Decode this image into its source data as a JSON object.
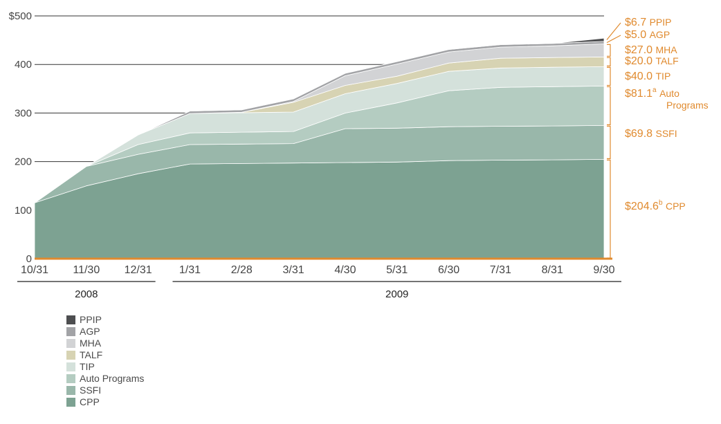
{
  "chart_data": {
    "type": "area",
    "stacked": true,
    "x": [
      "10/31",
      "11/30",
      "12/31",
      "1/31",
      "2/28",
      "3/31",
      "4/30",
      "5/31",
      "6/30",
      "7/31",
      "8/31",
      "9/30"
    ],
    "year_groups": [
      {
        "label": "2008",
        "from": "10/31",
        "to": "12/31"
      },
      {
        "label": "2009",
        "from": "1/31",
        "to": "9/30"
      }
    ],
    "ylim": [
      0,
      500
    ],
    "y_ticks": [
      {
        "value": 0,
        "label": "0"
      },
      {
        "value": 100,
        "label": "100"
      },
      {
        "value": 200,
        "label": "200"
      },
      {
        "value": 300,
        "label": "300"
      },
      {
        "value": 400,
        "label": "400"
      },
      {
        "value": 500,
        "label": "$500"
      }
    ],
    "series": [
      {
        "name": "CPP",
        "color": "#7da292",
        "values": [
          115,
          150,
          175,
          195,
          196,
          197,
          198,
          199,
          202,
          203,
          203.5,
          204.6
        ]
      },
      {
        "name": "SSFI",
        "color": "#99b7aa",
        "values": [
          0,
          40,
          40,
          40,
          40,
          40,
          69.8,
          69.8,
          69.8,
          69.8,
          69.8,
          69.8
        ]
      },
      {
        "name": "Auto Programs",
        "color": "#b4ccc1",
        "values": [
          0,
          0,
          20,
          24,
          24.5,
          25,
          32,
          52,
          74,
          80,
          81,
          81.1
        ]
      },
      {
        "name": "TIP",
        "color": "#d4e1db",
        "values": [
          0,
          0,
          20,
          40,
          40,
          40,
          40,
          40,
          40,
          40,
          40,
          40
        ]
      },
      {
        "name": "TALF",
        "color": "#d7d3b3",
        "values": [
          0,
          0,
          0,
          0,
          1,
          20,
          17,
          15,
          17,
          20,
          20,
          20
        ]
      },
      {
        "name": "MHA",
        "color": "#d2d3d5",
        "values": [
          0,
          0,
          0,
          0,
          0,
          2,
          20,
          25,
          23,
          23,
          24,
          27
        ]
      },
      {
        "name": "AGP",
        "color": "#a2a3a6",
        "values": [
          0,
          0,
          0,
          5,
          5,
          5,
          5,
          5,
          5,
          5,
          5,
          5
        ]
      },
      {
        "name": "PPIP",
        "color": "#4d4e50",
        "values": [
          0,
          0,
          0,
          0,
          0,
          0,
          0,
          0,
          0,
          0,
          0,
          6.7
        ]
      }
    ],
    "annotations": [
      {
        "series": "PPIP",
        "amount": "$6.7",
        "sup": "",
        "lines": [
          "PPIP"
        ]
      },
      {
        "series": "AGP",
        "amount": "$5.0",
        "sup": "",
        "lines": [
          "AGP"
        ]
      },
      {
        "series": "MHA",
        "amount": "$27.0",
        "sup": "",
        "lines": [
          "MHA"
        ]
      },
      {
        "series": "TALF",
        "amount": "$20.0",
        "sup": "",
        "lines": [
          "TALF"
        ]
      },
      {
        "series": "TIP",
        "amount": "$40.0",
        "sup": "",
        "lines": [
          "TIP"
        ]
      },
      {
        "series": "Auto Programs",
        "amount": "$81.1",
        "sup": "a",
        "lines": [
          "Auto",
          "Programs"
        ]
      },
      {
        "series": "SSFI",
        "amount": "$69.8",
        "sup": "",
        "lines": [
          "SSFI"
        ]
      },
      {
        "series": "CPP",
        "amount": "$204.6",
        "sup": "b",
        "lines": [
          "CPP"
        ]
      }
    ],
    "legend": {
      "placement": "bottom-left",
      "order": [
        "PPIP",
        "AGP",
        "MHA",
        "TALF",
        "TIP",
        "Auto Programs",
        "SSFI",
        "CPP"
      ]
    },
    "grid": true,
    "accent_color": "#e08a2e",
    "text_color": "#444444"
  }
}
